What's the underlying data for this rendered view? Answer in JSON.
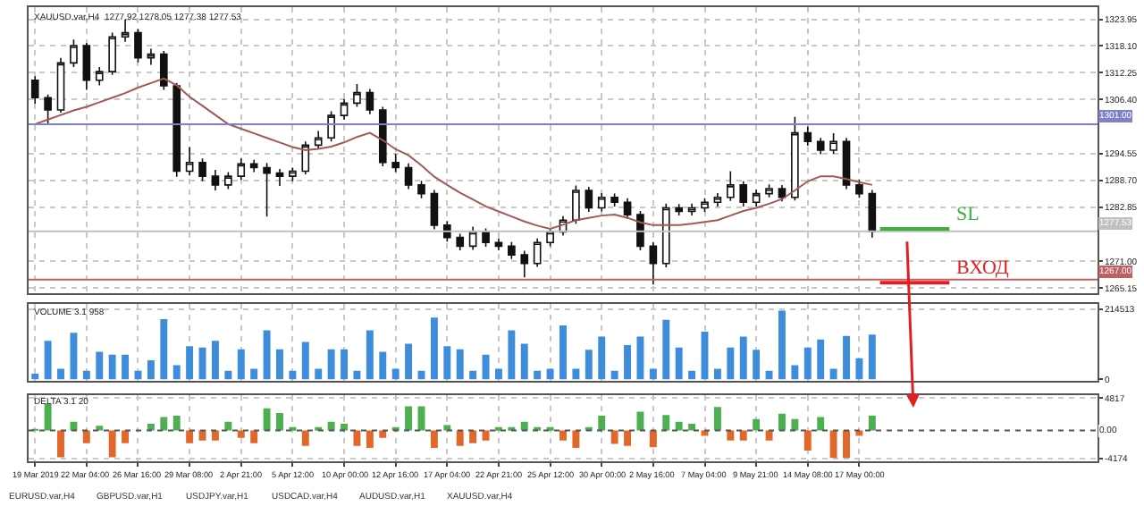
{
  "chart_data": [
    {
      "type": "candlestick",
      "title": "XAUUSD.var,H4  1277.92 1278.05 1277.38 1277.53",
      "grid": true,
      "legend": false,
      "tick_labels": "y",
      "categories": [
        null,
        null,
        null,
        null,
        null,
        null,
        null,
        null,
        null,
        null,
        null,
        null,
        null,
        null,
        null,
        null,
        null,
        null,
        null,
        null,
        null,
        null,
        null,
        null,
        null,
        null,
        null,
        null,
        null,
        null,
        null,
        null,
        null,
        null,
        null,
        null,
        null,
        null,
        null,
        null,
        null,
        null,
        null,
        null,
        null,
        null,
        null,
        null,
        null,
        null,
        null,
        null,
        null,
        null,
        null,
        null,
        null,
        null,
        null,
        null,
        null,
        null,
        null,
        null,
        null,
        null,
        null,
        null,
        null,
        null,
        null,
        null,
        null,
        null,
        null,
        null,
        null,
        null,
        null,
        null,
        null,
        null,
        null
      ],
      "ohlc": [
        [
          1310.6,
          1311.5,
          1305.5,
          1306.8
        ],
        [
          1306.8,
          1307.5,
          1301.0,
          1304.1
        ],
        [
          1304.1,
          1315.5,
          1303.5,
          1314.4
        ],
        [
          1314.4,
          1319.5,
          1313.5,
          1318.2
        ],
        [
          1318.2,
          1318.8,
          1308.5,
          1310.6
        ],
        [
          1310.6,
          1313.5,
          1309.5,
          1312.5
        ],
        [
          1312.5,
          1321.0,
          1311.8,
          1320.1
        ],
        [
          1320.1,
          1323.9,
          1319.0,
          1321.0
        ],
        [
          1321.0,
          1321.8,
          1314.5,
          1315.5
        ],
        [
          1315.5,
          1317.5,
          1314.0,
          1316.3
        ],
        [
          1316.3,
          1317.0,
          1308.5,
          1309.4
        ],
        [
          1309.4,
          1310.0,
          1289.5,
          1290.7
        ],
        [
          1290.7,
          1296.0,
          1289.8,
          1292.6
        ],
        [
          1292.6,
          1293.5,
          1288.5,
          1289.6
        ],
        [
          1289.6,
          1291.0,
          1286.5,
          1287.7
        ],
        [
          1287.7,
          1290.5,
          1286.8,
          1289.6
        ],
        [
          1289.6,
          1293.5,
          1288.8,
          1292.3
        ],
        [
          1292.3,
          1293.2,
          1290.5,
          1291.5
        ],
        [
          1291.5,
          1292.5,
          1280.8,
          1290.3
        ],
        [
          1290.3,
          1291.2,
          1287.5,
          1289.6
        ],
        [
          1289.6,
          1291.5,
          1288.5,
          1290.7
        ],
        [
          1290.7,
          1297.2,
          1290.0,
          1296.4
        ],
        [
          1296.4,
          1299.5,
          1295.5,
          1298.0
        ],
        [
          1298.0,
          1303.8,
          1297.2,
          1302.9
        ],
        [
          1302.9,
          1306.5,
          1302.0,
          1305.6
        ],
        [
          1305.6,
          1309.8,
          1304.8,
          1307.9
        ],
        [
          1307.9,
          1308.7,
          1303.2,
          1304.1
        ],
        [
          1304.1,
          1304.8,
          1291.8,
          1292.6
        ],
        [
          1292.6,
          1294.5,
          1290.5,
          1291.5
        ],
        [
          1291.5,
          1292.4,
          1286.8,
          1287.7
        ],
        [
          1287.7,
          1288.6,
          1284.8,
          1285.8
        ],
        [
          1285.8,
          1286.6,
          1278.0,
          1278.9
        ],
        [
          1278.9,
          1279.8,
          1275.3,
          1276.2
        ],
        [
          1276.2,
          1277.0,
          1273.4,
          1274.3
        ],
        [
          1274.3,
          1278.6,
          1273.5,
          1277.4
        ],
        [
          1277.4,
          1278.2,
          1274.2,
          1275.1
        ],
        [
          1275.1,
          1276.0,
          1273.4,
          1274.3
        ],
        [
          1274.3,
          1275.2,
          1271.5,
          1272.4
        ],
        [
          1272.4,
          1273.3,
          1267.5,
          1270.5
        ],
        [
          1270.5,
          1276.0,
          1269.8,
          1275.1
        ],
        [
          1275.1,
          1278.3,
          1274.3,
          1277.4
        ],
        [
          1277.4,
          1280.9,
          1276.6,
          1280.0
        ],
        [
          1280.0,
          1287.6,
          1279.2,
          1286.5
        ],
        [
          1286.5,
          1287.3,
          1281.8,
          1282.7
        ],
        [
          1282.7,
          1285.9,
          1281.9,
          1285.0
        ],
        [
          1285.0,
          1285.8,
          1283.0,
          1283.9
        ],
        [
          1283.9,
          1284.8,
          1280.3,
          1281.2
        ],
        [
          1281.2,
          1282.0,
          1273.4,
          1274.3
        ],
        [
          1274.3,
          1275.2,
          1265.9,
          1270.5
        ],
        [
          1270.5,
          1283.6,
          1269.7,
          1282.7
        ],
        [
          1282.7,
          1283.5,
          1281.0,
          1281.9
        ],
        [
          1281.9,
          1283.6,
          1281.0,
          1282.7
        ],
        [
          1282.7,
          1284.8,
          1281.8,
          1283.9
        ],
        [
          1283.9,
          1285.9,
          1283.0,
          1285.0
        ],
        [
          1285.0,
          1290.7,
          1284.2,
          1287.7
        ],
        [
          1287.7,
          1288.5,
          1283.0,
          1283.9
        ],
        [
          1283.9,
          1286.7,
          1283.0,
          1285.8
        ],
        [
          1285.8,
          1287.8,
          1285.0,
          1286.9
        ],
        [
          1286.9,
          1287.7,
          1284.1,
          1285.0
        ],
        [
          1285.0,
          1302.6,
          1284.3,
          1299.1
        ],
        [
          1299.1,
          1300.5,
          1296.3,
          1297.2
        ],
        [
          1297.2,
          1298.0,
          1294.4,
          1295.3
        ],
        [
          1295.3,
          1299.0,
          1294.5,
          1297.2
        ],
        [
          1297.2,
          1298.0,
          1286.8,
          1287.7
        ],
        [
          1287.7,
          1288.8,
          1284.9,
          1285.8
        ],
        [
          1285.8,
          1286.6,
          1276.2,
          1277.53
        ],
        null,
        null,
        null,
        null,
        null,
        null,
        null,
        null,
        null,
        null,
        null,
        null,
        null,
        null,
        null,
        null,
        null
      ],
      "series": [
        {
          "type": "line",
          "color": "#a05a55",
          "line_style": "solid",
          "values": [
            1301.0,
            1302.0,
            1303.0,
            1304.0,
            1304.8,
            1305.8,
            1306.8,
            1307.8,
            1309.0,
            1310.0,
            1311.0,
            1309.5,
            1307.0,
            1305.0,
            1303.0,
            1301.0,
            1300.0,
            1299.0,
            1298.0,
            1297.0,
            1296.0,
            1295.3,
            1295.6,
            1296.1,
            1297.0,
            1298.2,
            1299.1,
            1297.5,
            1295.5,
            1294.2,
            1292.0,
            1289.5,
            1287.7,
            1286.0,
            1284.5,
            1283.0,
            1281.9,
            1280.8,
            1279.7,
            1278.8,
            1278.1,
            1279.0,
            1280.0,
            1280.5,
            1281.0,
            1281.2,
            1280.5,
            1279.5,
            1278.9,
            1278.9,
            1278.9,
            1279.2,
            1279.6,
            1280.0,
            1281.0,
            1282.0,
            1282.7,
            1283.6,
            1284.6,
            1286.5,
            1288.5,
            1289.6,
            1289.6,
            1289.0,
            1288.3,
            1287.7,
            null,
            null,
            null,
            null,
            null,
            null,
            null,
            null,
            null,
            null,
            null,
            null,
            null,
            null,
            null,
            null,
            null
          ]
        }
      ],
      "ref_lines": [
        {
          "axis": "y",
          "value": 1301,
          "label": "1301.00",
          "color": "#8080c8",
          "line_style": "solid"
        },
        {
          "axis": "y",
          "value": 1267,
          "label": "1267.00",
          "color": "#c06060",
          "line_style": "solid"
        },
        {
          "axis": "y",
          "value": 1277.53,
          "label": "1277.53",
          "color": "#c0c0c0",
          "line_style": "solid"
        }
      ],
      "annotations": [
        {
          "text": "SL",
          "y": 1278.1
        },
        {
          "text": "ВХОД",
          "y": 1266.3
        }
      ],
      "ylim": [
        1264.0,
        1326.6
      ],
      "yticks": [
        {
          "value": 1265.15,
          "label": "1265.15"
        },
        {
          "value": 1271.0,
          "label": "1271.00"
        },
        {
          "value": 1282.85,
          "label": "1282.85"
        },
        {
          "value": 1288.7,
          "label": "1288.70"
        },
        {
          "value": 1294.55,
          "label": "1294.55"
        },
        {
          "value": 1306.4,
          "label": "1306.40"
        },
        {
          "value": 1312.25,
          "label": "1312.25"
        },
        {
          "value": 1318.1,
          "label": "1318.10"
        },
        {
          "value": 1323.95,
          "label": "1323.95"
        }
      ]
    },
    {
      "type": "bar",
      "title": "VOLUME 3.1 958",
      "grid": true,
      "legend": false,
      "tick_labels": "y",
      "color": "#3d8ddb",
      "categories": [
        null,
        null,
        null,
        null,
        null,
        null,
        null,
        null,
        null,
        null,
        null,
        null,
        null,
        null,
        null,
        null,
        null,
        null,
        null,
        null,
        null,
        null,
        null,
        null,
        null,
        null,
        null,
        null,
        null,
        null,
        null,
        null,
        null,
        null,
        null,
        null,
        null,
        null,
        null,
        null,
        null,
        null,
        null,
        null,
        null,
        null,
        null,
        null,
        null,
        null,
        null,
        null,
        null,
        null,
        null,
        null,
        null,
        null,
        null,
        null,
        null,
        null,
        null,
        null,
        null,
        null,
        null,
        null,
        null,
        null,
        null,
        null,
        null,
        null,
        null,
        null,
        null,
        null,
        null,
        null,
        null,
        null,
        null
      ],
      "values": [
        17000,
        118000,
        32000,
        142000,
        26000,
        84000,
        75000,
        75000,
        26000,
        58000,
        184000,
        43000,
        101000,
        97000,
        118000,
        26000,
        92000,
        32000,
        150000,
        92000,
        26000,
        114000,
        32000,
        92000,
        92000,
        26000,
        150000,
        84000,
        32000,
        109000,
        26000,
        189000,
        101000,
        92000,
        26000,
        75000,
        32000,
        150000,
        109000,
        26000,
        32000,
        165000,
        32000,
        90000,
        131000,
        26000,
        105000,
        131000,
        32000,
        182000,
        97000,
        26000,
        146000,
        32000,
        97000,
        131000,
        90000,
        26000,
        210000,
        43000,
        97000,
        122000,
        32000,
        133000,
        64000,
        137000,
        null,
        null,
        null,
        null,
        null,
        null,
        null,
        null,
        null,
        null,
        null,
        null,
        null,
        null,
        null,
        null,
        null
      ],
      "ylim": [
        -5000,
        230000
      ],
      "yticks": [
        0,
        214513
      ]
    },
    {
      "type": "bar",
      "title": "DELTA 3.1 20",
      "grid": true,
      "legend": false,
      "categories": [
        "19 Mar 2019",
        null,
        null,
        null,
        "22 Mar 04:00",
        null,
        null,
        null,
        "26 Mar 16:00",
        null,
        null,
        null,
        "29 Mar 08:00",
        null,
        null,
        null,
        "2 Apr 21:00",
        null,
        null,
        null,
        "5 Apr 12:00",
        null,
        null,
        null,
        "10 Apr 00:00",
        null,
        null,
        null,
        "12 Apr 16:00",
        null,
        null,
        null,
        "17 Apr 04:00",
        null,
        null,
        null,
        "22 Apr 21:00",
        null,
        null,
        null,
        "25 Apr 12:00",
        null,
        null,
        null,
        "30 Apr 00:00",
        null,
        null,
        null,
        "2 May 16:00",
        null,
        null,
        null,
        "7 May 04:00",
        null,
        null,
        null,
        "9 May 21:00",
        null,
        null,
        null,
        "14 May 08:00",
        null,
        null,
        null,
        "17 May 00:00",
        null,
        null,
        null,
        null,
        null,
        null,
        null,
        null,
        null,
        null,
        null,
        null,
        null,
        null,
        null,
        null,
        null,
        null
      ],
      "values": [
        200,
        4000,
        -4000,
        1300,
        -1900,
        700,
        -4000,
        -1900,
        null,
        1000,
        2000,
        2200,
        -1900,
        -1500,
        -1500,
        1300,
        -1100,
        -1900,
        3300,
        2600,
        300,
        -2300,
        300,
        1300,
        1000,
        -2300,
        -2600,
        -1100,
        400,
        3600,
        3600,
        -2600,
        800,
        -2300,
        -1900,
        -1500,
        300,
        500,
        1300,
        500,
        300,
        -1500,
        -2600,
        400,
        2200,
        -2000,
        -2300,
        2800,
        -2500,
        2300,
        1300,
        1000,
        -800,
        3500,
        -1500,
        -1500,
        1700,
        -1500,
        2500,
        1700,
        -3000,
        2000,
        -4100,
        -4100,
        -800,
        2200,
        null,
        null,
        null,
        null,
        null,
        null,
        null,
        null,
        null,
        null,
        null,
        null,
        null,
        null,
        null,
        null,
        null
      ],
      "colors": [
        "#4caf50",
        "#4caf50",
        "#e2672b",
        "#4caf50",
        "#e2672b",
        "#4caf50",
        "#e2672b",
        "#e2672b",
        "#e2672b",
        "#4caf50",
        "#4caf50",
        "#4caf50",
        "#e2672b",
        "#e2672b",
        "#e2672b",
        "#4caf50",
        "#e2672b",
        "#e2672b",
        "#4caf50",
        "#4caf50",
        "#4caf50",
        "#e2672b",
        "#4caf50",
        "#4caf50",
        "#4caf50",
        "#e2672b",
        "#e2672b",
        "#e2672b",
        "#4caf50",
        "#4caf50",
        "#4caf50",
        "#e2672b",
        "#4caf50",
        "#e2672b",
        "#e2672b",
        "#e2672b",
        "#4caf50",
        "#4caf50",
        "#4caf50",
        "#4caf50",
        "#4caf50",
        "#e2672b",
        "#e2672b",
        "#4caf50",
        "#4caf50",
        "#e2672b",
        "#e2672b",
        "#4caf50",
        "#e2672b",
        "#4caf50",
        "#4caf50",
        "#4caf50",
        "#e2672b",
        "#4caf50",
        "#e2672b",
        "#e2672b",
        "#4caf50",
        "#e2672b",
        "#4caf50",
        "#4caf50",
        "#e2672b",
        "#4caf50",
        "#e2672b",
        "#e2672b",
        "#e2672b",
        "#4caf50",
        null,
        null,
        null,
        null,
        null,
        null,
        null,
        null,
        null,
        null,
        null,
        null,
        null,
        null,
        null,
        null,
        null
      ],
      "ref_lines": [
        {
          "axis": "y",
          "value": 0,
          "label": "0.00",
          "color": "#555555",
          "line_style": "dotted"
        }
      ],
      "annotations": [
        "EURUSD.var,H4",
        "GBPUSD.var,H1",
        "USDJPY.var,H1",
        "USDCAD.var,H4",
        "AUDUSD.var,H1",
        "XAUUSD.var,H4"
      ],
      "ylim": [
        -4600,
        5300
      ],
      "yticks": [
        -4174,
        4817
      ]
    }
  ]
}
